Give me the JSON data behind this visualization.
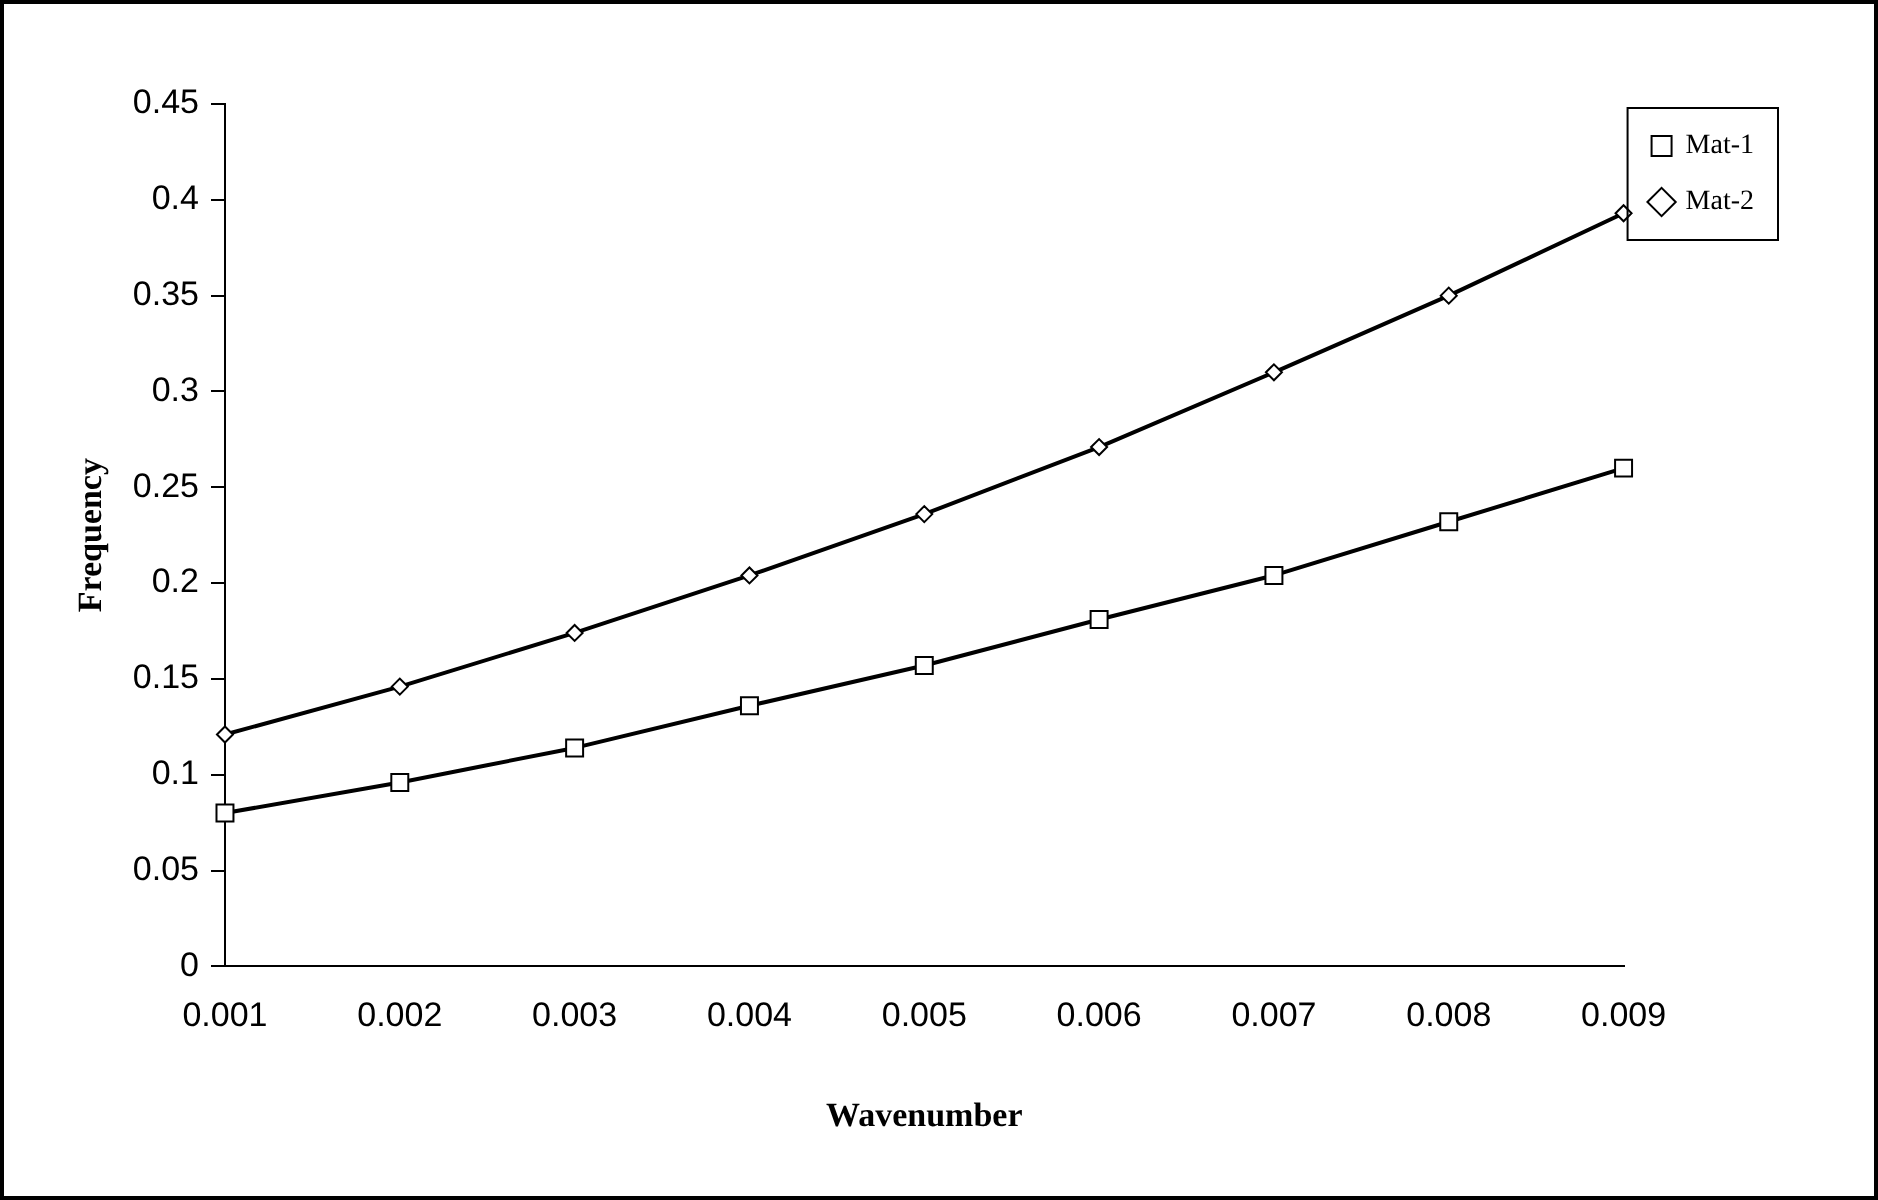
{
  "chart_data": {
    "type": "line",
    "xlabel": "Wavenumber",
    "ylabel": "Frequency",
    "categories": [
      "0.001",
      "0.002",
      "0.003",
      "0.004",
      "0.005",
      "0.006",
      "0.007",
      "0.008",
      "0.009"
    ],
    "series": [
      {
        "name": "Mat-1",
        "color": "#000000",
        "marker": "square",
        "values": [
          0.08,
          0.096,
          0.114,
          0.136,
          0.157,
          0.181,
          0.204,
          0.232,
          0.26
        ]
      },
      {
        "name": "Mat-2",
        "color": "#000000",
        "marker": "diamond",
        "values": [
          0.121,
          0.146,
          0.174,
          0.204,
          0.236,
          0.271,
          0.31,
          0.35,
          0.393
        ]
      }
    ],
    "ylim": [
      0,
      0.45
    ],
    "yticks": [
      0,
      0.05,
      0.1,
      0.15,
      0.2,
      0.25,
      0.3,
      0.35,
      0.4,
      0.45
    ],
    "grid": false,
    "legend": "top right",
    "line_style": "solid"
  }
}
